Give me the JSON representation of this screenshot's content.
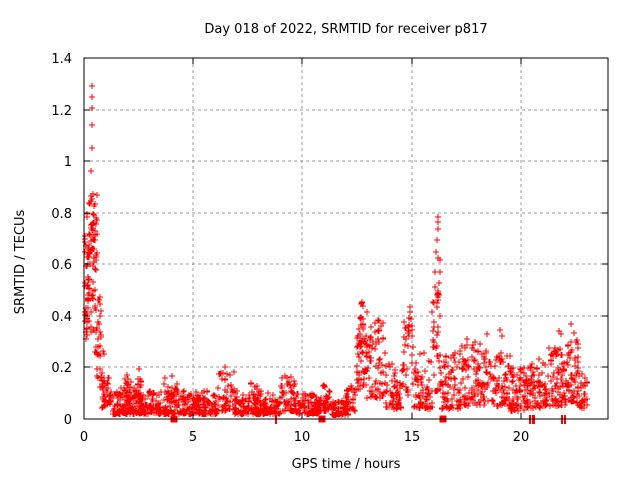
{
  "chart_data": {
    "type": "scatter",
    "title": "Day 018 of 2022, SRMTID for receiver p817",
    "xlabel": "GPS time / hours",
    "ylabel": "SRMTID / TECUs",
    "xlim": [
      0,
      24
    ],
    "ylim": [
      0,
      1.4
    ],
    "grid": true,
    "legend": "none",
    "background": "#ffffff",
    "colors": {
      "marker": "#ff0000",
      "grid": "#9e9e9e",
      "border": "#000000",
      "text": "#000000"
    },
    "series": [
      {
        "name": "SRMTID",
        "marker": "plus",
        "color": "#ff0000"
      }
    ],
    "x_ticks": [
      {
        "value": 0,
        "label": "0"
      },
      {
        "value": 5,
        "label": "5"
      },
      {
        "value": 10,
        "label": "10"
      },
      {
        "value": 15,
        "label": "15"
      },
      {
        "value": 20,
        "label": "20"
      }
    ],
    "y_ticks": [
      {
        "value": 0,
        "label": "0"
      },
      {
        "value": 0.2,
        "label": "0.2"
      },
      {
        "value": 0.4,
        "label": "0.4"
      },
      {
        "value": 0.6,
        "label": "0.6"
      },
      {
        "value": 0.8,
        "label": "0.8"
      },
      {
        "value": 1,
        "label": "1"
      },
      {
        "value": 1.2,
        "label": "1.2"
      },
      {
        "value": 1.4,
        "label": "1.4"
      }
    ],
    "outlier_points": [
      [
        0.35,
        1.29
      ],
      [
        0.36,
        1.25
      ],
      [
        0.35,
        1.205
      ],
      [
        0.37,
        1.14
      ],
      [
        0.36,
        1.05
      ],
      [
        0.33,
        0.96
      ],
      [
        16.2,
        0.785
      ],
      [
        16.23,
        0.765
      ],
      [
        16.21,
        0.735
      ],
      [
        16.18,
        0.695
      ],
      [
        12.75,
        0.455
      ],
      [
        12.8,
        0.44
      ],
      [
        14.95,
        0.435
      ],
      [
        13.45,
        0.385
      ],
      [
        17.55,
        0.31
      ],
      [
        17.9,
        0.3
      ],
      [
        18.45,
        0.33
      ],
      [
        19.05,
        0.345
      ],
      [
        19.15,
        0.32
      ],
      [
        21.75,
        0.34
      ],
      [
        21.85,
        0.33
      ],
      [
        22.3,
        0.37
      ],
      [
        22.45,
        0.335
      ],
      [
        22.55,
        0.3
      ],
      [
        2.5,
        0.195
      ],
      [
        4.05,
        0.165
      ],
      [
        6.45,
        0.2
      ],
      [
        9.3,
        0.16
      ],
      [
        11.0,
        0.13
      ]
    ],
    "axis_zero_squares": [
      4.1,
      10.9,
      16.45
    ],
    "axis_zero_bars": [
      8.8,
      20.45,
      20.55,
      20.63,
      21.9,
      22.03
    ],
    "dense_bands": [
      [
        0.02,
        0.25,
        0.3,
        0.72,
        40,
        1
      ],
      [
        0.12,
        0.6,
        0.33,
        0.88,
        60,
        1
      ],
      [
        0.28,
        0.58,
        0.58,
        0.8,
        16,
        1
      ],
      [
        0.45,
        0.8,
        0.22,
        0.48,
        22,
        1
      ],
      [
        0.55,
        0.92,
        0.12,
        0.32,
        22,
        1.5
      ],
      [
        0.8,
        1.25,
        0.04,
        0.16,
        35,
        1.5
      ],
      [
        1.25,
        2.4,
        0.02,
        0.12,
        100,
        2
      ],
      [
        1.8,
        2.2,
        0.08,
        0.18,
        16,
        1
      ],
      [
        2.4,
        2.62,
        0.07,
        0.19,
        10,
        1
      ],
      [
        2.4,
        4.2,
        0.02,
        0.11,
        150,
        2
      ],
      [
        3.6,
        4.3,
        0.05,
        0.16,
        16,
        1
      ],
      [
        4.2,
        6.1,
        0.02,
        0.11,
        160,
        2
      ],
      [
        6.1,
        6.9,
        0.03,
        0.19,
        50,
        1.7
      ],
      [
        6.9,
        8.3,
        0.02,
        0.11,
        120,
        2
      ],
      [
        7.5,
        7.95,
        0.06,
        0.15,
        12,
        1
      ],
      [
        8.3,
        9.0,
        0.02,
        0.1,
        60,
        2
      ],
      [
        9.0,
        9.7,
        0.03,
        0.17,
        50,
        1.7
      ],
      [
        9.7,
        10.8,
        0.02,
        0.1,
        95,
        2
      ],
      [
        10.8,
        11.3,
        0.03,
        0.13,
        40,
        1.7
      ],
      [
        11.3,
        12.1,
        0.015,
        0.07,
        70,
        1.7
      ],
      [
        12.0,
        12.45,
        0.03,
        0.13,
        28,
        1.3
      ],
      [
        12.45,
        13.15,
        0.08,
        0.33,
        60,
        1
      ],
      [
        12.55,
        12.95,
        0.28,
        0.45,
        20,
        1
      ],
      [
        13.15,
        13.8,
        0.08,
        0.38,
        50,
        1.2
      ],
      [
        13.8,
        14.6,
        0.04,
        0.22,
        60,
        1.6
      ],
      [
        14.6,
        15.1,
        0.08,
        0.38,
        32,
        1
      ],
      [
        14.82,
        15.02,
        0.33,
        0.43,
        7,
        1
      ],
      [
        15.1,
        15.95,
        0.04,
        0.26,
        65,
        1.7
      ],
      [
        15.95,
        16.35,
        0.1,
        0.48,
        32,
        1
      ],
      [
        16.08,
        16.32,
        0.44,
        0.66,
        15,
        1
      ],
      [
        16.35,
        17.3,
        0.04,
        0.27,
        70,
        1.7
      ],
      [
        17.3,
        18.3,
        0.05,
        0.29,
        80,
        1.6
      ],
      [
        18.3,
        19.5,
        0.05,
        0.27,
        90,
        1.6
      ],
      [
        19.5,
        20.3,
        0.03,
        0.2,
        65,
        1.7
      ],
      [
        20.3,
        21.1,
        0.04,
        0.24,
        65,
        1.6
      ],
      [
        21.1,
        22.05,
        0.05,
        0.28,
        80,
        1.5
      ],
      [
        22.05,
        22.65,
        0.06,
        0.31,
        55,
        1.3
      ],
      [
        22.6,
        23.05,
        0.04,
        0.18,
        28,
        1.6
      ]
    ]
  }
}
